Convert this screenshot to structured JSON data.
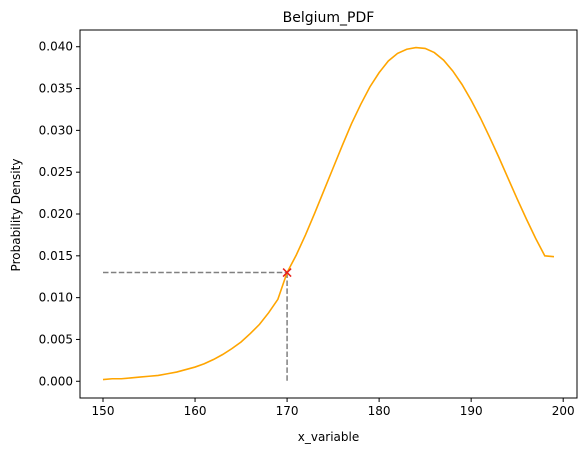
{
  "chart_data": {
    "type": "line",
    "title": "Belgium_PDF",
    "xlabel": "x_variable",
    "ylabel": "Probability Density",
    "xlim": [
      147.5,
      201.5
    ],
    "ylim": [
      -0.002,
      0.042
    ],
    "xticks": [
      150,
      160,
      170,
      180,
      190,
      200
    ],
    "xtick_labels": [
      "150",
      "160",
      "170",
      "180",
      "190",
      "200"
    ],
    "yticks": [
      0.0,
      0.005,
      0.01,
      0.015,
      0.02,
      0.025,
      0.03,
      0.035,
      0.04
    ],
    "ytick_labels": [
      "0.000",
      "0.005",
      "0.010",
      "0.015",
      "0.020",
      "0.025",
      "0.030",
      "0.035",
      "0.040"
    ],
    "grid": false,
    "series": [
      {
        "color": "#FFA500",
        "x": [
          150,
          151,
          152,
          153,
          154,
          155,
          156,
          157,
          158,
          159,
          160,
          161,
          162,
          163,
          164,
          165,
          166,
          167,
          168,
          169,
          170,
          171,
          172,
          173,
          174,
          175,
          176,
          177,
          178,
          179,
          180,
          181,
          182,
          183,
          184,
          185,
          186,
          187,
          188,
          189,
          190,
          191,
          192,
          193,
          194,
          195,
          196,
          197,
          198,
          199
        ],
        "y": [
          0.0002,
          0.0003,
          0.0003,
          0.0004,
          0.0005,
          0.0006,
          0.0007,
          0.0009,
          0.0011,
          0.0014,
          0.0017,
          0.0021,
          0.0026,
          0.0032,
          0.0039,
          0.0047,
          0.0057,
          0.0068,
          0.0082,
          0.0098,
          0.013,
          0.0151,
          0.0175,
          0.0201,
          0.0228,
          0.0255,
          0.0282,
          0.0308,
          0.0331,
          0.0352,
          0.0369,
          0.0383,
          0.0392,
          0.0397,
          0.0399,
          0.0398,
          0.0393,
          0.0384,
          0.0371,
          0.0355,
          0.0336,
          0.0315,
          0.0292,
          0.0268,
          0.0243,
          0.0218,
          0.0194,
          0.0171,
          0.015,
          0.0149
        ]
      }
    ],
    "marker": {
      "x": 170,
      "y": 0.013,
      "symbol": "x",
      "color": "#E8221B"
    },
    "guide_lines": {
      "color": "#808080",
      "style": "dashed",
      "from_x": 150,
      "to_y": 0.0
    }
  }
}
